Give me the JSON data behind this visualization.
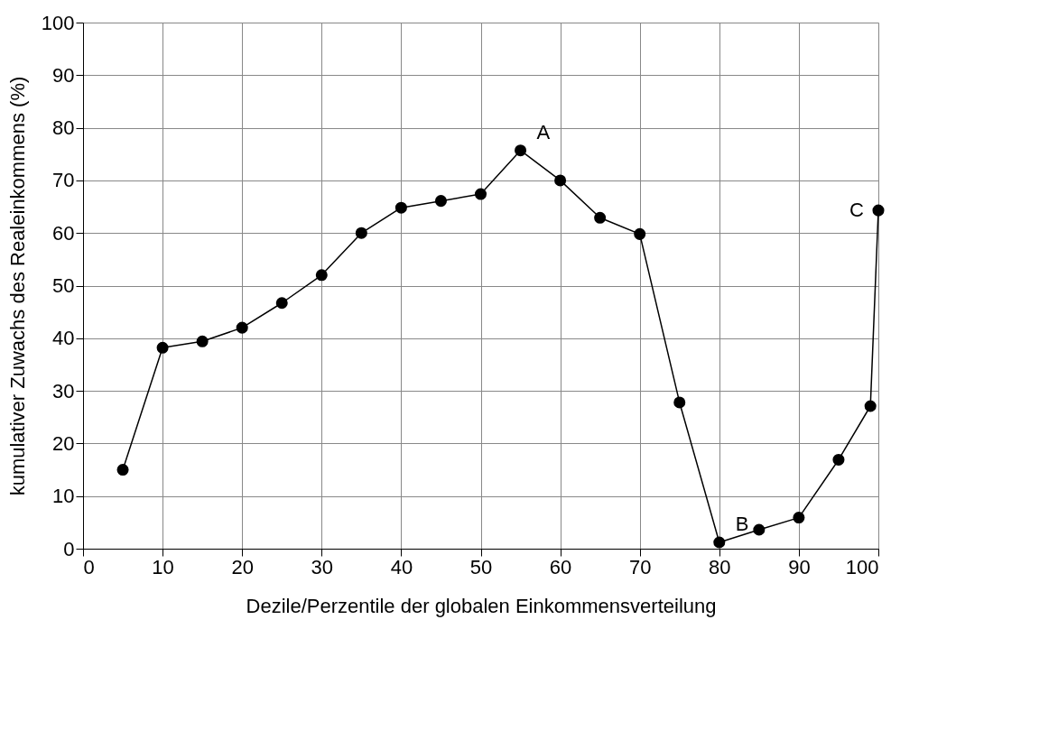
{
  "chart_data": {
    "type": "line",
    "xlabel": "Dezile/Perzentile der globalen Einkommensverteilung",
    "ylabel": "kumulativer Zuwachs des Realeinkommens (%)",
    "x": [
      5,
      10,
      15,
      20,
      25,
      30,
      35,
      40,
      45,
      50,
      55,
      60,
      65,
      70,
      75,
      80,
      85,
      90,
      95,
      99,
      100
    ],
    "series": [
      {
        "color": "#000000",
        "values": [
          15,
          38.2,
          39.4,
          42,
          46.7,
          52,
          60,
          64.8,
          66.1,
          67.4,
          75.7,
          70,
          62.9,
          59.8,
          27.8,
          1.2,
          3.6,
          5.9,
          16.9,
          27.1,
          64.3
        ]
      }
    ],
    "xlim": [
      0,
      100
    ],
    "ylim": [
      0,
      100
    ],
    "xticks": [
      0,
      10,
      20,
      30,
      40,
      50,
      60,
      70,
      80,
      90,
      100
    ],
    "yticks": [
      0,
      10,
      20,
      30,
      40,
      50,
      60,
      70,
      80,
      90,
      100
    ],
    "grid": true,
    "marker": "circle",
    "line_style": "solid",
    "annotations": [
      {
        "text": "A",
        "x": 55,
        "y": 75.7
      },
      {
        "text": "B",
        "x": 80,
        "y": 1.2
      },
      {
        "text": "C",
        "x": 100,
        "y": 64.3
      }
    ]
  }
}
